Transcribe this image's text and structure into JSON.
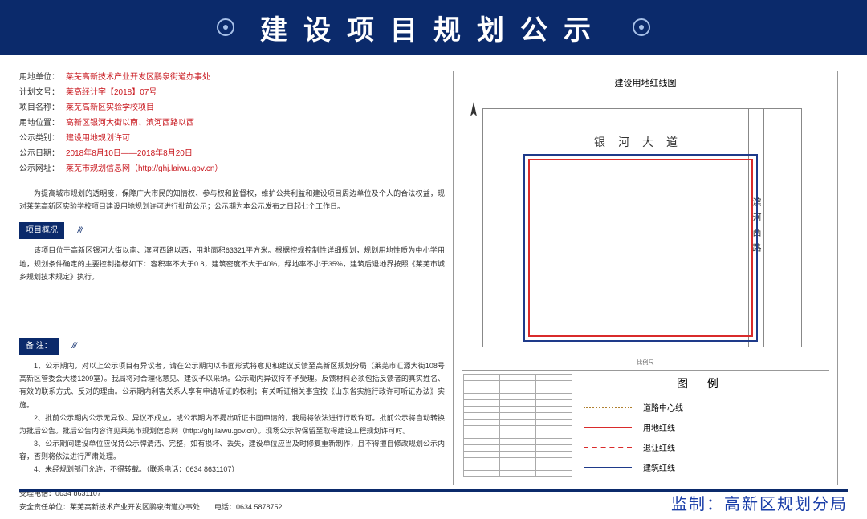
{
  "header": {
    "title": "建设项目规划公示"
  },
  "info": {
    "unit_label": "用地单位：",
    "unit": "莱芜高新技术产业开发区鹏泉街道办事处",
    "docnum_label": "计划文号：",
    "docnum": "莱高经计字【2018】07号",
    "project_label": "项目名称：",
    "project": "莱芜高新区实验学校项目",
    "location_label": "用地位置：",
    "location": "高新区银河大街以南、滨河西路以西",
    "category_label": "公示类别：",
    "category": "建设用地规划许可",
    "dates_label": "公示日期：",
    "dates": "2018年8月10日——2018年8月20日",
    "url_label": "公示网址：",
    "url": "莱芜市规划信息网（http://ghj.laiwu.gov.cn）"
  },
  "intro_paragraph": "为提高城市规划的透明度，保障广大市民的知情权、参与权和监督权，维护公共利益和建设项目周边单位及个人的合法权益，现对莱芜高新区实验学校项目建设用地规划许可进行批前公示；公示期为本公示发布之日起七个工作日。",
  "overview": {
    "tag": "项目概况",
    "text": "该项目位于高新区银河大街以南、滨河西路以西，用地面积63321平方米。根据控规控制性详细规划，规划用地性质为中小学用地，规划条件确定的主要控制指标如下：容积率不大于0.8，建筑密度不大于40%，绿地率不小于35%，建筑后退地界按照《莱芜市城乡规划技术规定》执行。"
  },
  "notes": {
    "tag": "备  注：",
    "items": [
      "1、公示期内，对以上公示项目有异议者，请在公示期内以书面形式将意见和建议反馈至高新区规划分局（莱芜市汇源大街108号高新区管委会大楼1209室）。我局将对合理化意见、建议予以采纳。公示期内异议持不予受理。反馈材料必须包括反馈者的真实姓名、有效的联系方式、反对的理由。公示期内利害关系人享有申请听证的权利；有关听证相关事宜按《山东省实施行政许可听证办法》实施。",
      "2、批前公示期内公示无异议、异议不成立，或公示期内不提出听证书面申请的，我局将依法进行行政许可。批前公示将自动转换为批后公告。批后公告内容详见莱芜市规划信息网（http://ghj.laiwu.gov.cn）。现场公示牌保留至取得建设工程规划许可时。",
      "3、公示期间建设单位应保持公示牌清洁、完整，如有损坏、丢失，建设单位应当及时修复重新制作，且不得擅自修改规划公示内容，否则将依法进行严肃处理。",
      "4、未经规划部门允许，不得转载。（联系电话：0634 8631107）"
    ]
  },
  "footer": {
    "phone": "受理电话：0634 8631107",
    "safety": "安全责任单位：莱芜高新技术产业开发区鹏泉街道办事处　　电话：0634 5878752"
  },
  "map": {
    "title": "建设用地红线图",
    "road_h": "银河大道",
    "road_v": "滨河西路",
    "compass": "N",
    "scale_label": "比例尺"
  },
  "legend": {
    "title": "图  例",
    "items": [
      {
        "cls": "legend-dash",
        "label": "道路中心线"
      },
      {
        "cls": "legend-red",
        "label": "用地红线"
      },
      {
        "cls": "legend-redd",
        "label": "退让红线"
      },
      {
        "cls": "legend-blue",
        "label": "建筑红线"
      }
    ]
  },
  "supervisor": "监制：高新区规划分局",
  "colors": {
    "header_bg": "#0b2a6b",
    "red_text": "#c8161d",
    "red_line": "#d92b2b",
    "blue_line": "#1e3a8a",
    "supervisor": "#1a3ea8"
  },
  "coord_rows": 16
}
